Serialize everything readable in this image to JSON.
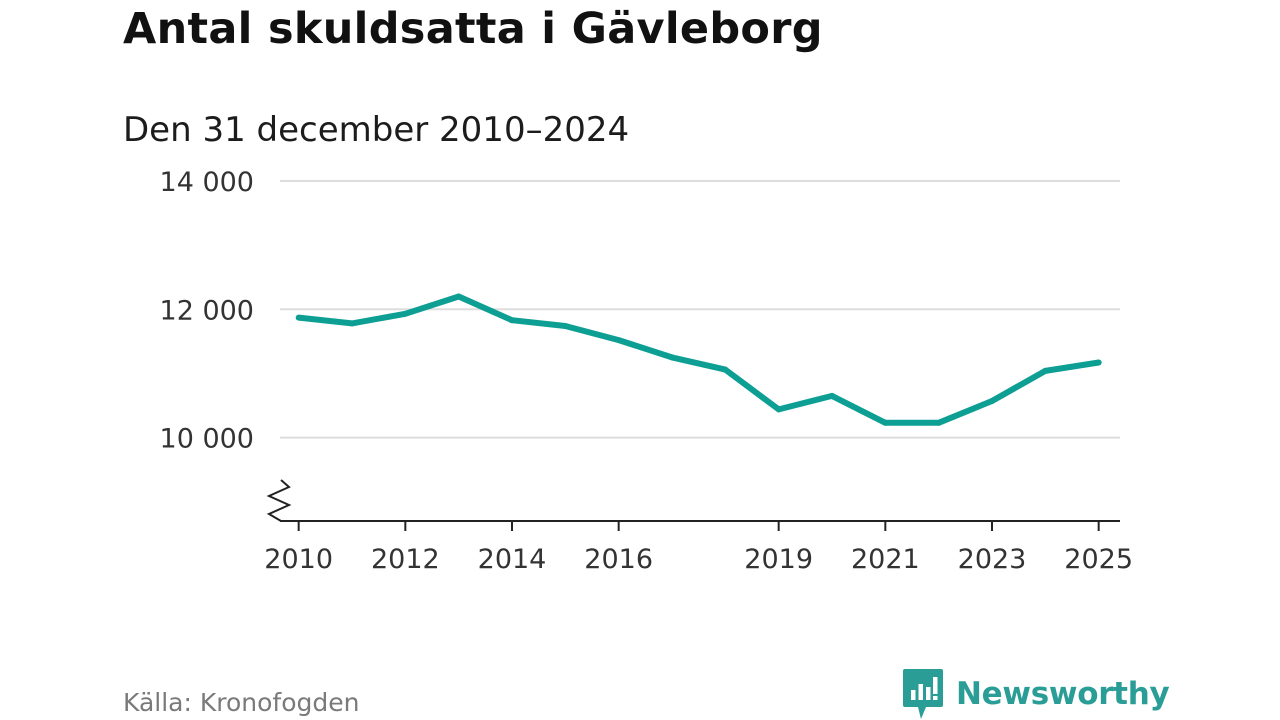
{
  "title": "Antal skuldsatta i Gävleborg",
  "subtitle": "Den 31 december 2010–2024",
  "source": "Källa: Kronofogden",
  "logo": {
    "name": "Newsworthy",
    "icon": "newsworthy-logo-icon"
  },
  "colors": {
    "line": "#0e9f94",
    "grid": "#dddddd",
    "axis": "#222222",
    "logo": "#2a9d97"
  },
  "chart_data": {
    "type": "line",
    "title": "Antal skuldsatta i Gävleborg",
    "subtitle": "Den 31 december 2010–2024",
    "xlabel": "",
    "ylabel": "",
    "x": [
      2010,
      2011,
      2012,
      2013,
      2014,
      2015,
      2016,
      2017,
      2018,
      2019,
      2020,
      2021,
      2022,
      2023,
      2024,
      2025
    ],
    "series": [
      {
        "name": "Antal skuldsatta",
        "values": [
          11870,
          11780,
          11930,
          12200,
          11830,
          11740,
          11520,
          11250,
          11060,
          10440,
          10650,
          10230,
          10230,
          10570,
          11040,
          11170
        ]
      }
    ],
    "xticks": [
      2010,
      2012,
      2014,
      2016,
      2019,
      2021,
      2023,
      2025
    ],
    "yticks": [
      {
        "value": 10000,
        "label": "10 000"
      },
      {
        "value": 12000,
        "label": "12 000"
      },
      {
        "value": 14000,
        "label": "14 000"
      }
    ],
    "ylim": [
      8700,
      14000
    ],
    "xlim": [
      2009.65,
      2025.4
    ],
    "grid": true,
    "axis_break": true
  }
}
